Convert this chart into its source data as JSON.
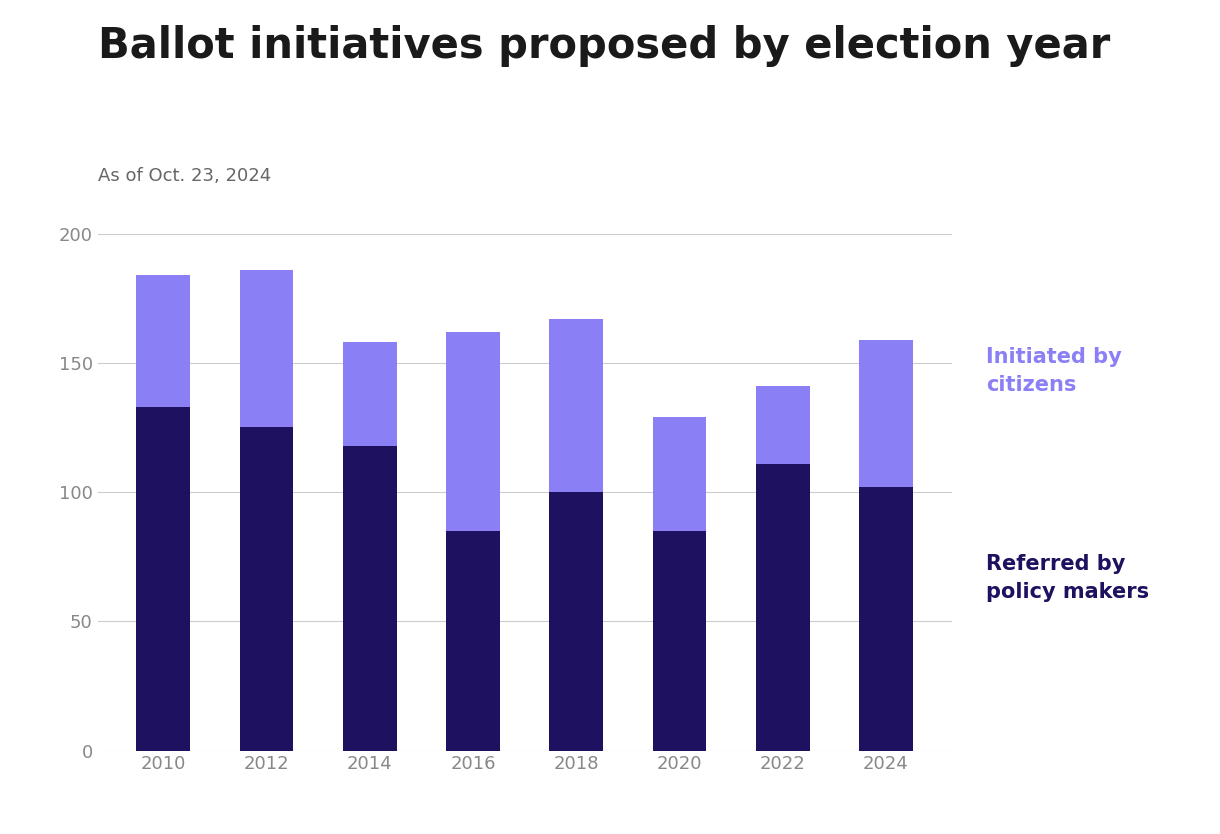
{
  "years": [
    "2010",
    "2012",
    "2014",
    "2016",
    "2018",
    "2020",
    "2022",
    "2024"
  ],
  "policy_makers": [
    133,
    125,
    118,
    85,
    100,
    85,
    111,
    102
  ],
  "citizens": [
    51,
    61,
    40,
    77,
    67,
    44,
    30,
    57
  ],
  "color_policy": "#1e1160",
  "color_citizens": "#8b7ff5",
  "title": "Ballot initiatives proposed by election year",
  "subtitle": "As of Oct. 23, 2024",
  "legend_citizens": "Initiated by\ncitizens",
  "legend_policy": "Referred by\npolicy makers",
  "ylim": [
    0,
    200
  ],
  "yticks": [
    0,
    50,
    100,
    150,
    200
  ],
  "background_color": "#ffffff",
  "title_fontsize": 30,
  "subtitle_fontsize": 13,
  "tick_fontsize": 13,
  "legend_fontsize": 15,
  "bar_width": 0.52,
  "title_color": "#1a1a1a",
  "subtitle_color": "#666666",
  "tick_color": "#888888",
  "grid_color": "#cccccc",
  "legend_citizens_color": "#8b7ff5",
  "legend_policy_color": "#1e1160"
}
